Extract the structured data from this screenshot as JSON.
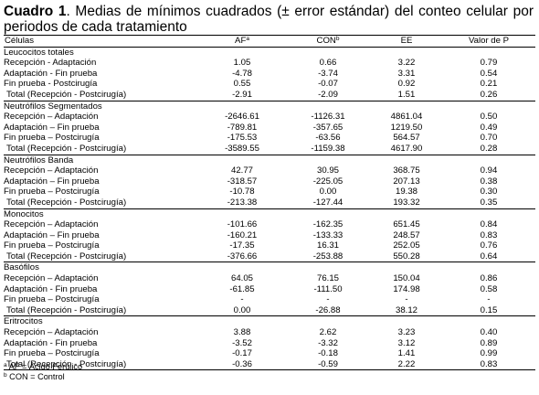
{
  "caption": {
    "label": "Cuadro 1",
    "text": ". Medias de mínimos cuadrados (± error estándar) del conteo celular por periodos de cada tratamiento"
  },
  "headers": {
    "cells": "Células",
    "af": "AF",
    "af_sup": "a",
    "con": "CON",
    "con_sup": "b",
    "ee": "EE",
    "p": "Valor de P"
  },
  "groups": [
    {
      "name": "Leucocitos totales",
      "rows": [
        {
          "label": "Recepción - Adaptación",
          "af": "1.05",
          "con": "0.66",
          "ee": "3.22",
          "p": "0.79"
        },
        {
          "label": "Adaptación - Fin prueba",
          "af": "-4.78",
          "con": "-3.74",
          "ee": "3.31",
          "p": "0.54"
        },
        {
          "label": "Fin prueba - Postcirugía",
          "af": "0.55",
          "con": "-0.07",
          "ee": "0.92",
          "p": "0.21"
        },
        {
          "label": "Total (Recepción - Postcirugía)",
          "af": "-2.91",
          "con": "-2.09",
          "ee": "1.51",
          "p": "0.26"
        }
      ]
    },
    {
      "name": "Neutrófilos Segmentados",
      "rows": [
        {
          "label": "Recepción – Adaptación",
          "af": "-2646.61",
          "con": "-1126.31",
          "ee": "4861.04",
          "p": "0.50"
        },
        {
          "label": "Adaptación – Fin prueba",
          "af": "-789.81",
          "con": "-357.65",
          "ee": "1219.50",
          "p": "0.49"
        },
        {
          "label": "Fin prueba – Postcirugía",
          "af": "-175.53",
          "con": "-63.56",
          "ee": "564.57",
          "p": "0.70"
        },
        {
          "label": "Total (Recepción - Postcirugía)",
          "af": "-3589.55",
          "con": "-1159.38",
          "ee": "4617.90",
          "p": "0.28"
        }
      ]
    },
    {
      "name": "Neutrófilos Banda",
      "rows": [
        {
          "label": "Recepción – Adaptación",
          "af": "42.77",
          "con": "30.95",
          "ee": "368.75",
          "p": "0.94"
        },
        {
          "label": "Adaptación – Fin prueba",
          "af": "-318.57",
          "con": "-225.05",
          "ee": "207.13",
          "p": "0.38"
        },
        {
          "label": "Fin prueba – Postcirugía",
          "af": "-10.78",
          "con": "0.00",
          "ee": "19.38",
          "p": "0.30"
        },
        {
          "label": "Total (Recepción - Postcirugía)",
          "af": "-213.38",
          "con": "-127.44",
          "ee": "193.32",
          "p": "0.35"
        }
      ]
    },
    {
      "name": "Monocitos",
      "rows": [
        {
          "label": "Recepción – Adaptación",
          "af": "-101.66",
          "con": "-162.35",
          "ee": "651.45",
          "p": "0.84"
        },
        {
          "label": "Adaptación – Fin prueba",
          "af": "-160.21",
          "con": "-133.33",
          "ee": "248.57",
          "p": "0.83"
        },
        {
          "label": "Fin prueba – Postcirugía",
          "af": "-17.35",
          "con": "16.31",
          "ee": "252.05",
          "p": "0.76"
        },
        {
          "label": "Total (Recepción - Postcirugía)",
          "af": "-376.66",
          "con": "-253.88",
          "ee": "550.28",
          "p": "0.64"
        }
      ]
    },
    {
      "name": "Basófilos",
      "rows": [
        {
          "label": "Recepción – Adaptación",
          "af": "64.05",
          "con": "76.15",
          "ee": "150.04",
          "p": "0.86"
        },
        {
          "label": "Adaptación - Fin prueba",
          "af": "-61.85",
          "con": "-111.50",
          "ee": "174.98",
          "p": "0.58"
        },
        {
          "label": "Fin prueba – Postcirugía",
          "af": "-",
          "con": "-",
          "ee": "-",
          "p": "-"
        },
        {
          "label": "Total (Recepción - Postcirugía)",
          "af": "0.00",
          "con": "-26.88",
          "ee": "38.12",
          "p": "0.15"
        }
      ]
    },
    {
      "name": "Eritrocitos",
      "rows": [
        {
          "label": "Recepción – Adaptación",
          "af": "3.88",
          "con": "2.62",
          "ee": "3.23",
          "p": "0.40"
        },
        {
          "label": "Adaptación - Fin prueba",
          "af": "-3.52",
          "con": "-3.32",
          "ee": "3.12",
          "p": "0.89"
        },
        {
          "label": "Fin prueba – Postcirugía",
          "af": "-0.17",
          "con": "-0.18",
          "ee": "1.41",
          "p": "0.99"
        },
        {
          "label": "Total (Recepción - Postcirugía)",
          "af": "-0.36",
          "con": "-0.59",
          "ee": "2.22",
          "p": "0.83"
        }
      ]
    }
  ],
  "notes": [
    {
      "sup": "a",
      "text": " AF = Ácido Ferúlico"
    },
    {
      "sup": "b",
      "text": " CON = Control"
    }
  ]
}
